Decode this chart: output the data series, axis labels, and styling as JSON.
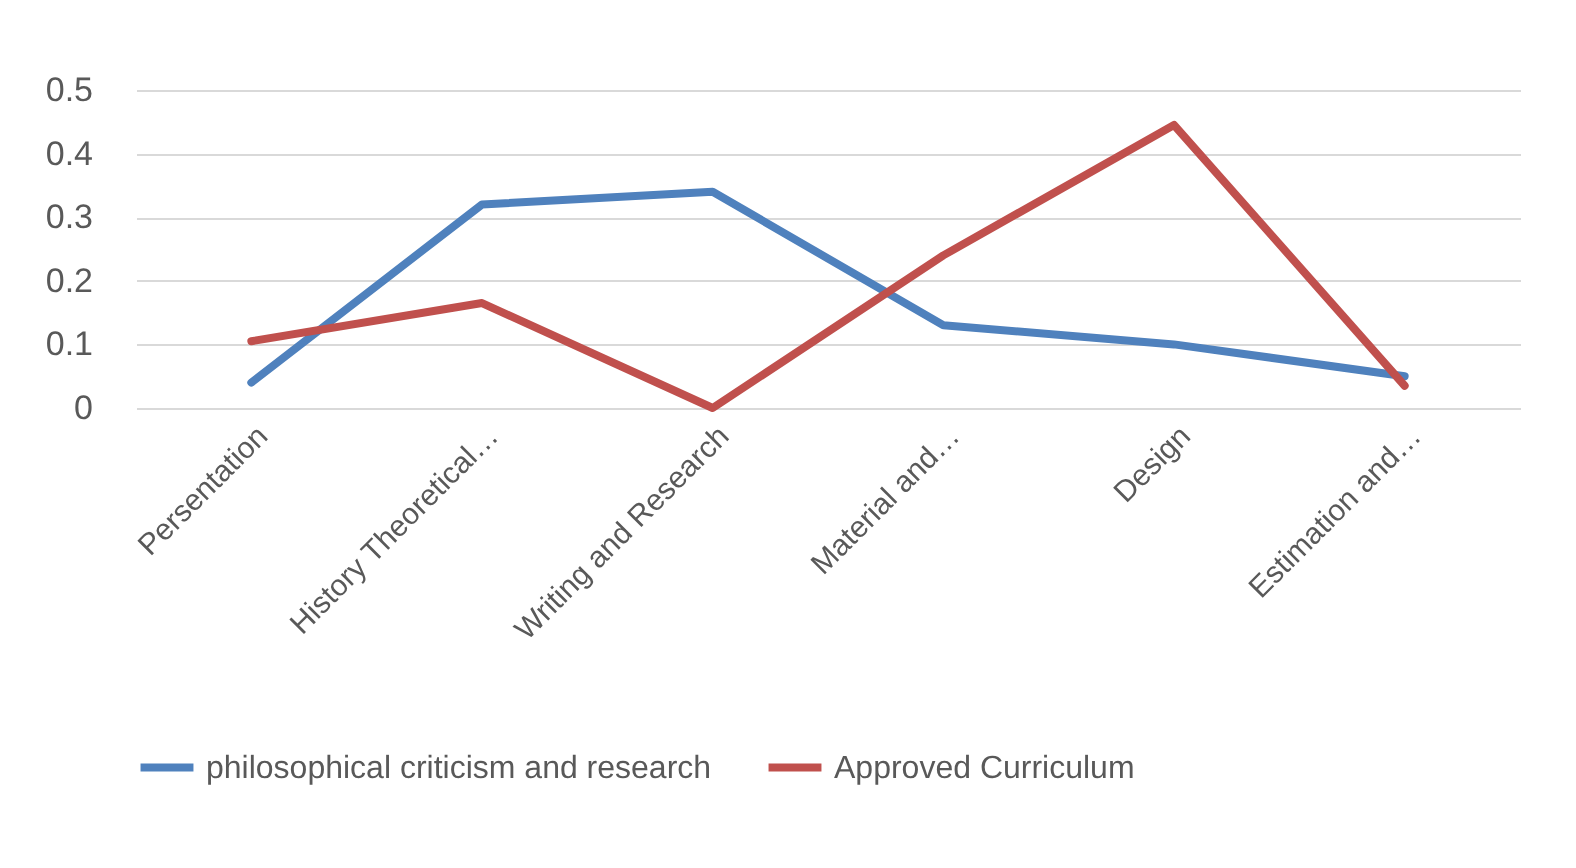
{
  "chart_data": {
    "type": "line",
    "categories": [
      "Persentation",
      "History Theoretical…",
      "Writing and Research",
      "Material and…",
      "Design",
      "Estimation and…"
    ],
    "series": [
      {
        "name": "philosophical criticism and research",
        "color": "#4f81bd",
        "values": [
          0.04,
          0.32,
          0.34,
          0.13,
          0.1,
          0.05
        ]
      },
      {
        "name": "Approved Curriculum",
        "color": "#c0504d",
        "values": [
          0.105,
          0.165,
          0,
          0.24,
          0.445,
          0.035
        ]
      }
    ],
    "ylim": [
      0,
      0.5
    ],
    "yticks": [
      0,
      0.1,
      0.2,
      0.3,
      0.4,
      0.5
    ],
    "grid": "y",
    "legend": "bottom",
    "marker": "none",
    "line_style": "solid"
  }
}
